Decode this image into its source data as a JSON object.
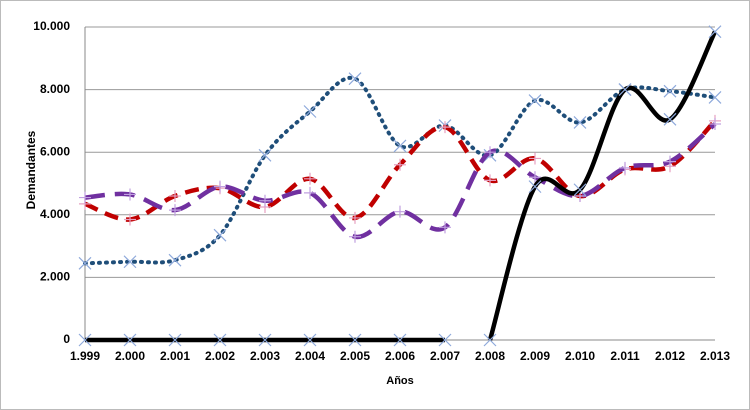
{
  "chart_data": {
    "type": "line",
    "x_label": "Años",
    "y_label": "Demandantes",
    "categories": [
      "1.999",
      "2.000",
      "2.001",
      "2.002",
      "2.003",
      "2.004",
      "2.005",
      "2.006",
      "2.007",
      "2.008",
      "2.009",
      "2.010",
      "2.011",
      "2.012",
      "2.013"
    ],
    "series": [
      {
        "color": "#1f4e79",
        "dash": "dotted",
        "marker": "x",
        "marker_color": "#8ea9db",
        "values": [
          2450,
          2500,
          2550,
          3350,
          5900,
          7300,
          8350,
          6200,
          6850,
          5900,
          7650,
          6950,
          8000,
          7950,
          7750
        ]
      },
      {
        "color": "#c00000",
        "dash": "dashed",
        "marker": "+",
        "marker_color": "#e6a0c0",
        "values": [
          4350,
          3850,
          4600,
          4850,
          4250,
          5150,
          3900,
          5600,
          6800,
          5100,
          5800,
          4600,
          5450,
          5550,
          7000
        ]
      },
      {
        "color": "#7030a0",
        "dash": "long-dashed",
        "marker": "+",
        "marker_color": "#c0a0e0",
        "values": [
          4550,
          4650,
          4150,
          4900,
          4450,
          4700,
          3300,
          4100,
          3600,
          6000,
          5200,
          4600,
          5500,
          5700,
          6900
        ]
      },
      {
        "color": "#000000",
        "dash": "solid",
        "marker": "x",
        "marker_color": "#8ea9db",
        "values": [
          0,
          0,
          0,
          0,
          0,
          0,
          0,
          0,
          0,
          null,
          null,
          null,
          null,
          null,
          null
        ]
      },
      {
        "color": "#000000",
        "dash": "solid",
        "marker": "x",
        "marker_color": "#8ea9db",
        "values": [
          null,
          null,
          null,
          null,
          null,
          null,
          null,
          null,
          null,
          0,
          4900,
          4800,
          8000,
          7050,
          9850
        ]
      }
    ],
    "ylim": [
      0,
      10000
    ],
    "yticks": [
      0,
      {
        "value": 2000,
        "label": "2.000"
      },
      {
        "value": 4000,
        "label": "4.000"
      },
      {
        "value": 6000,
        "label": "6.000"
      },
      {
        "value": 8000,
        "label": "8.000"
      },
      {
        "value": 10000,
        "label": "10.000"
      }
    ],
    "grid": true
  }
}
